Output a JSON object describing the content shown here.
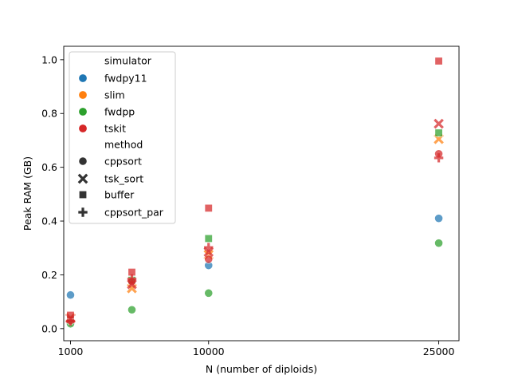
{
  "colors": {
    "fwdpy11": "#1f77b4",
    "slim": "#ff7f0e",
    "fwdpp": "#2ca02c",
    "tskit": "#d62728",
    "marker_style": "#333333"
  },
  "legend": {
    "hue_title": "simulator",
    "hue_entries": [
      "fwdpy11",
      "slim",
      "fwdpp",
      "tskit"
    ],
    "style_title": "method",
    "style_entries": [
      {
        "label": "cppsort",
        "marker": "circle"
      },
      {
        "label": "tsk_sort",
        "marker": "x"
      },
      {
        "label": "buffer",
        "marker": "square"
      },
      {
        "label": "cppsort_par",
        "marker": "plus"
      }
    ],
    "placement": "upper-left"
  },
  "chart_data": {
    "type": "scatter",
    "title": "",
    "xlabel": "N (number of diploids)",
    "ylabel": "Peak RAM (GB)",
    "xlim": [
      560,
      26320
    ],
    "ylim": [
      -0.045,
      1.05
    ],
    "xticks": [
      1000,
      10000,
      25000
    ],
    "xtick_labels": [
      "1000",
      "10000",
      "25000"
    ],
    "yticks": [
      0.0,
      0.2,
      0.4,
      0.6,
      0.8,
      1.0
    ],
    "ytick_labels": [
      "0.0",
      "0.2",
      "0.4",
      "0.6",
      "0.8",
      "1.0"
    ],
    "grid": false,
    "points": [
      {
        "simulator": "fwdpy11",
        "method": "cppsort",
        "x": 1000,
        "y": 0.125
      },
      {
        "simulator": "fwdpy11",
        "method": "cppsort",
        "x": 10000,
        "y": 0.235
      },
      {
        "simulator": "fwdpy11",
        "method": "cppsort",
        "x": 25000,
        "y": 0.41
      },
      {
        "simulator": "slim",
        "method": "tsk_sort",
        "x": 1000,
        "y": 0.04
      },
      {
        "simulator": "slim",
        "method": "tsk_sort",
        "x": 5000,
        "y": 0.15
      },
      {
        "simulator": "slim",
        "method": "tsk_sort",
        "x": 10000,
        "y": 0.275
      },
      {
        "simulator": "slim",
        "method": "tsk_sort",
        "x": 25000,
        "y": 0.705
      },
      {
        "simulator": "fwdpp",
        "method": "cppsort",
        "x": 1000,
        "y": 0.018
      },
      {
        "simulator": "fwdpp",
        "method": "cppsort",
        "x": 5000,
        "y": 0.07
      },
      {
        "simulator": "fwdpp",
        "method": "cppsort",
        "x": 10000,
        "y": 0.132
      },
      {
        "simulator": "fwdpp",
        "method": "cppsort",
        "x": 25000,
        "y": 0.318
      },
      {
        "simulator": "fwdpp",
        "method": "buffer",
        "x": 1000,
        "y": 0.035
      },
      {
        "simulator": "fwdpp",
        "method": "buffer",
        "x": 5000,
        "y": 0.18
      },
      {
        "simulator": "fwdpp",
        "method": "buffer",
        "x": 10000,
        "y": 0.335
      },
      {
        "simulator": "fwdpp",
        "method": "buffer",
        "x": 25000,
        "y": 0.728
      },
      {
        "simulator": "tskit",
        "method": "cppsort",
        "x": 1000,
        "y": 0.03
      },
      {
        "simulator": "tskit",
        "method": "cppsort",
        "x": 5000,
        "y": 0.175
      },
      {
        "simulator": "tskit",
        "method": "cppsort",
        "x": 10000,
        "y": 0.258
      },
      {
        "simulator": "tskit",
        "method": "cppsort",
        "x": 25000,
        "y": 0.65
      },
      {
        "simulator": "tskit",
        "method": "tsk_sort",
        "x": 1000,
        "y": 0.038
      },
      {
        "simulator": "tskit",
        "method": "tsk_sort",
        "x": 5000,
        "y": 0.165
      },
      {
        "simulator": "tskit",
        "method": "tsk_sort",
        "x": 10000,
        "y": 0.285
      },
      {
        "simulator": "tskit",
        "method": "tsk_sort",
        "x": 25000,
        "y": 0.762
      },
      {
        "simulator": "tskit",
        "method": "buffer",
        "x": 1000,
        "y": 0.05
      },
      {
        "simulator": "tskit",
        "method": "buffer",
        "x": 5000,
        "y": 0.21
      },
      {
        "simulator": "tskit",
        "method": "buffer",
        "x": 10000,
        "y": 0.448
      },
      {
        "simulator": "tskit",
        "method": "buffer",
        "x": 25000,
        "y": 0.995
      },
      {
        "simulator": "tskit",
        "method": "cppsort_par",
        "x": 1000,
        "y": 0.028
      },
      {
        "simulator": "tskit",
        "method": "cppsort_par",
        "x": 5000,
        "y": 0.185
      },
      {
        "simulator": "tskit",
        "method": "cppsort_par",
        "x": 10000,
        "y": 0.302
      },
      {
        "simulator": "tskit",
        "method": "cppsort_par",
        "x": 25000,
        "y": 0.635
      }
    ]
  }
}
